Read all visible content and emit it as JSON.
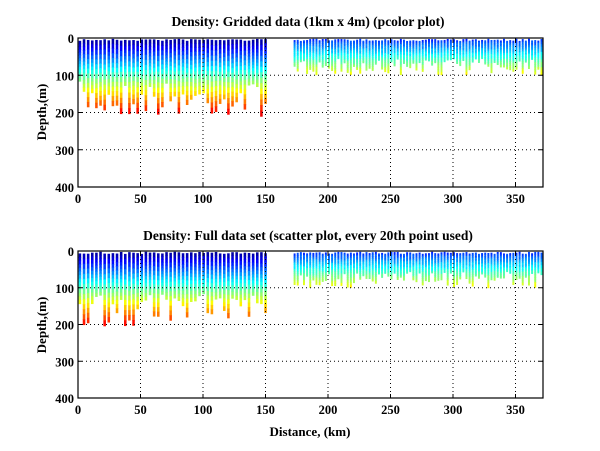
{
  "chart_data": [
    {
      "type": "heatmap",
      "subtype": "pcolor",
      "title": "Density: Gridded data (1km x 4m) (pcolor plot)",
      "xlabel": "",
      "ylabel": "Depth,(m)",
      "xlim": [
        0,
        372
      ],
      "ylim": [
        400,
        0
      ],
      "xticks": [
        0,
        50,
        100,
        150,
        200,
        250,
        300,
        350
      ],
      "yticks": [
        0,
        100,
        200,
        300,
        400
      ],
      "grid": true,
      "colormap": "jet",
      "segments": [
        {
          "x_start": 0,
          "x_end": 150,
          "max_depth": 210,
          "profile_spacing_km": 3.3
        },
        {
          "x_start": 172,
          "x_end": 372,
          "max_depth": 100,
          "profile_spacing_km": 2.5
        }
      ],
      "gap_km": [
        150,
        172
      ]
    },
    {
      "type": "scatter",
      "title": "Density: Full data set (scatter plot, every 20th point used)",
      "xlabel": "Distance, (km)",
      "ylabel": "Depth,(m)",
      "xlim": [
        0,
        372
      ],
      "ylim": [
        400,
        0
      ],
      "xticks": [
        0,
        50,
        100,
        150,
        200,
        250,
        300,
        350
      ],
      "yticks": [
        0,
        100,
        200,
        300,
        400
      ],
      "grid": true,
      "colormap": "jet",
      "segments": [
        {
          "x_start": 0,
          "x_end": 150,
          "max_depth": 205,
          "profile_spacing_km": 3.3
        },
        {
          "x_start": 172,
          "x_end": 372,
          "max_depth": 100,
          "profile_spacing_km": 2.5
        }
      ],
      "gap_km": [
        150,
        172
      ]
    }
  ]
}
